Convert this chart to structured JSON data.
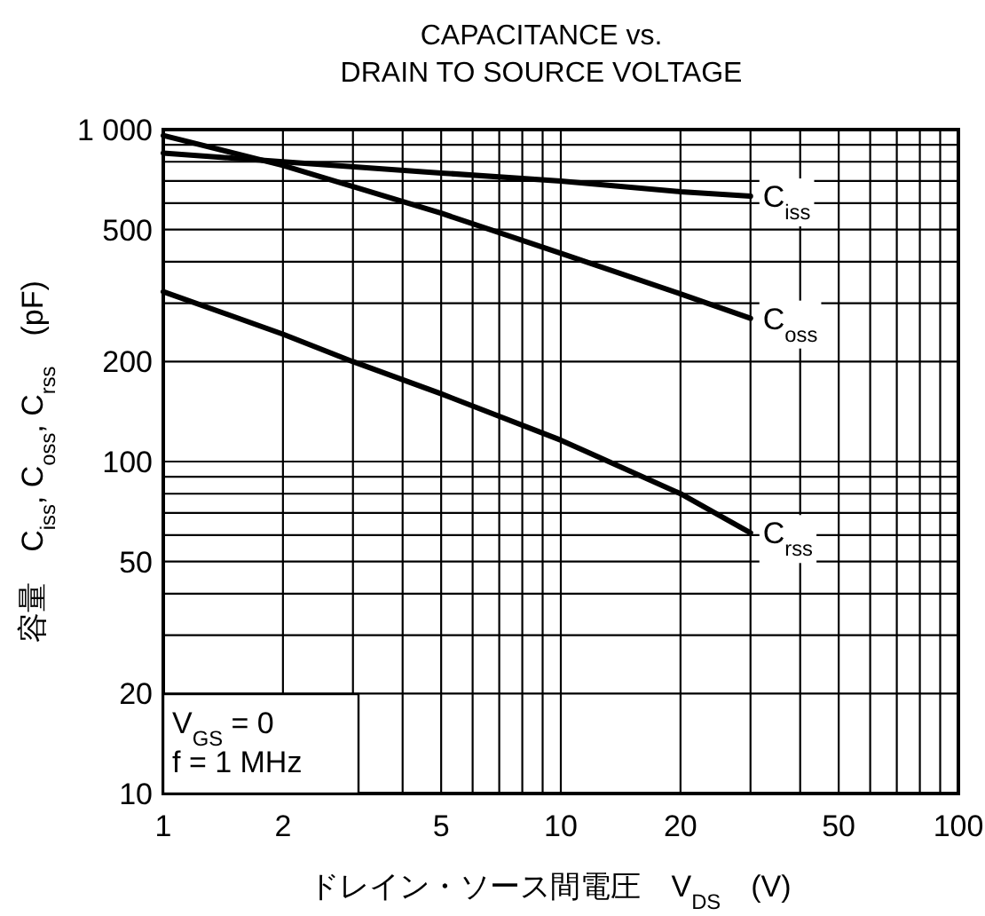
{
  "chart_data": {
    "type": "line",
    "title": "CAPACITANCE vs.",
    "subtitle": "DRAIN TO SOURCE VOLTAGE",
    "xlabel": "ドレイン・ソース間電圧　V$_{DS}$　(V)",
    "ylabel": "容量　C$_{iss}$, C$_{oss}$, C$_{rss}$　(pF)",
    "log": "xy",
    "grid": true,
    "legend": false,
    "marker": "none",
    "line_style": "solid",
    "xlim": [
      1,
      100
    ],
    "ylim": [
      10,
      1000
    ],
    "xticks": [
      1,
      2,
      5,
      10,
      20,
      50,
      100
    ],
    "yticks": [
      10,
      20,
      50,
      100,
      200,
      500,
      {
        "value": 1000,
        "label": "1 000"
      }
    ],
    "annotations": [
      "V$_{GS}$ = 0",
      "f = 1 MHz"
    ],
    "series": [
      {
        "name": "C$_{iss}$",
        "color": "#000000",
        "x": [
          1,
          2,
          5,
          10,
          20,
          30
        ],
        "values": [
          850,
          800,
          740,
          700,
          650,
          630
        ]
      },
      {
        "name": "C$_{oss}$",
        "color": "#000000",
        "x": [
          1,
          2,
          5,
          10,
          20,
          30
        ],
        "values": [
          960,
          780,
          560,
          424,
          320,
          270
        ]
      },
      {
        "name": "C$_{rss}$",
        "color": "#000000",
        "x": [
          1,
          2,
          3,
          5,
          10,
          20,
          30
        ],
        "values": [
          325,
          242,
          200,
          160,
          116,
          80,
          61
        ]
      }
    ]
  }
}
